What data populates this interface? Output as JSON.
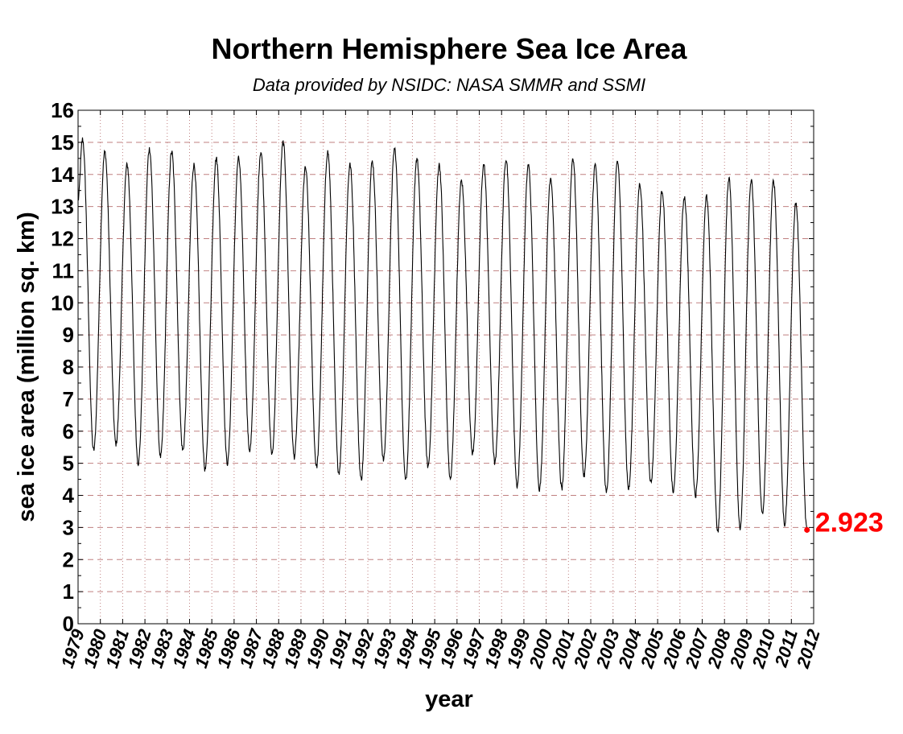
{
  "chart_data": {
    "type": "line",
    "title": "Northern Hemisphere Sea Ice Area",
    "subtitle": "Data provided by NSIDC: NASA SMMR and SSMI",
    "xlabel": "year",
    "ylabel": "sea ice area (million sq. km)",
    "xlim": [
      1979,
      2012
    ],
    "ylim": [
      0,
      16
    ],
    "x_ticks": [
      "1979",
      "1980",
      "1981",
      "1982",
      "1983",
      "1984",
      "1985",
      "1986",
      "1987",
      "1988",
      "1989",
      "1990",
      "1991",
      "1992",
      "1993",
      "1994",
      "1995",
      "1996",
      "1997",
      "1998",
      "1999",
      "2000",
      "2001",
      "2002",
      "2003",
      "2004",
      "2005",
      "2006",
      "2007",
      "2008",
      "2009",
      "2010",
      "2011",
      "2012"
    ],
    "y_ticks": [
      "0",
      "1",
      "2",
      "3",
      "4",
      "5",
      "6",
      "7",
      "8",
      "9",
      "10",
      "11",
      "12",
      "13",
      "14",
      "15",
      "16"
    ],
    "grid": true,
    "line_color": "#000000",
    "grid_color": "#c08080",
    "annotation": {
      "label": "2.923",
      "x": 2011.7,
      "y": 2.923,
      "color": "#ff0000"
    },
    "series": [
      {
        "start_year": 1979,
        "annual_max": [
          15.1,
          14.7,
          14.3,
          14.8,
          14.7,
          14.3,
          14.5,
          14.5,
          14.7,
          15.0,
          14.2,
          14.7,
          14.3,
          14.4,
          14.8,
          14.5,
          14.3,
          13.8,
          14.3,
          14.5,
          14.3,
          13.9,
          14.5,
          14.3,
          14.4,
          13.7,
          13.5,
          13.3,
          13.3,
          13.9,
          13.8,
          13.8,
          13.1
        ],
        "annual_min": [
          5.4,
          5.6,
          5.0,
          5.2,
          5.4,
          4.8,
          5.0,
          5.4,
          5.3,
          5.2,
          4.9,
          4.7,
          4.5,
          5.1,
          4.5,
          4.9,
          4.5,
          5.3,
          5.0,
          4.3,
          4.2,
          4.2,
          4.6,
          4.1,
          4.2,
          4.4,
          4.1,
          4.0,
          2.9,
          3.0,
          3.4,
          3.1,
          2.923
        ],
        "start_value": 13.2,
        "end_value": 2.923
      }
    ]
  }
}
